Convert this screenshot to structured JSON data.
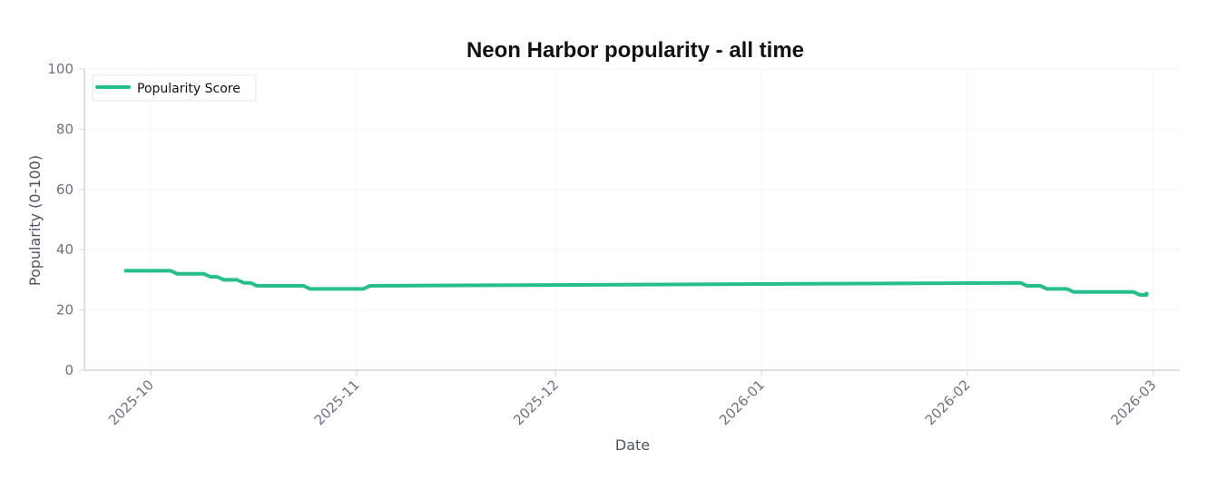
{
  "chart_data": {
    "type": "line",
    "title": "Neon Harbor popularity - all time",
    "xlabel": "Date",
    "ylabel": "Popularity (0-100)",
    "ylim": [
      0,
      100
    ],
    "yticks": [
      0,
      20,
      40,
      60,
      80,
      100
    ],
    "xlim": [
      "2025-09-21",
      "2026-03-05"
    ],
    "xticks": [
      "2025-10",
      "2025-11",
      "2025-12",
      "2026-01",
      "2026-02",
      "2026-03"
    ],
    "grid": true,
    "legend_position": "top-left",
    "colors": {
      "series": "#26bf8c",
      "axis": "#d1d5db",
      "grid": "#f3f4f6"
    },
    "series": [
      {
        "name": "Popularity Score",
        "points": [
          [
            "2025-09-27",
            33
          ],
          [
            "2025-10-04",
            33
          ],
          [
            "2025-10-05",
            32
          ],
          [
            "2025-10-09",
            32
          ],
          [
            "2025-10-10",
            31
          ],
          [
            "2025-10-11",
            31
          ],
          [
            "2025-10-12",
            30
          ],
          [
            "2025-10-14",
            30
          ],
          [
            "2025-10-15",
            29
          ],
          [
            "2025-10-16",
            29
          ],
          [
            "2025-10-17",
            28
          ],
          [
            "2025-10-24",
            28
          ],
          [
            "2025-10-25",
            27
          ],
          [
            "2025-11-02",
            27
          ],
          [
            "2025-11-03",
            28
          ],
          [
            "2026-02-09",
            29
          ],
          [
            "2026-02-10",
            28
          ],
          [
            "2026-02-12",
            28
          ],
          [
            "2026-02-13",
            27
          ],
          [
            "2026-02-16",
            27
          ],
          [
            "2026-02-17",
            26
          ],
          [
            "2026-02-26",
            26
          ],
          [
            "2026-02-27",
            25
          ],
          [
            "2026-02-28",
            25
          ],
          [
            "2026-02-28",
            26
          ]
        ]
      }
    ]
  }
}
